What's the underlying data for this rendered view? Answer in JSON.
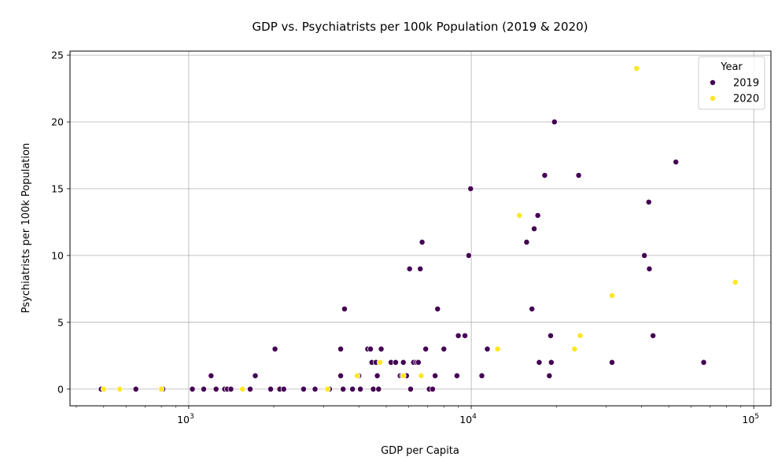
{
  "chart_data": {
    "type": "scatter",
    "title": "GDP vs. Psychiatrists per 100k Population (2019 & 2020)",
    "xlabel": "GDP per Capita",
    "ylabel": "Psychiatrists per 100k Population",
    "x_scale": "log",
    "xlim": [
      380,
      115000
    ],
    "ylim": [
      -1.25,
      25.3
    ],
    "x_ticks": [
      {
        "value": 1000,
        "base": "10",
        "exp": "3"
      },
      {
        "value": 10000,
        "base": "10",
        "exp": "4"
      },
      {
        "value": 100000,
        "base": "10",
        "exp": "5"
      }
    ],
    "y_ticks": [
      0,
      5,
      10,
      15,
      20,
      25
    ],
    "grid": true,
    "legend": {
      "title": "Year",
      "position": "top-right"
    },
    "series": [
      {
        "name": "2019",
        "color": "#440154",
        "points": [
          [
            490,
            0
          ],
          [
            650,
            0
          ],
          [
            810,
            0
          ],
          [
            1030,
            0
          ],
          [
            1130,
            0
          ],
          [
            1200,
            1
          ],
          [
            1250,
            0
          ],
          [
            1340,
            0
          ],
          [
            1370,
            0
          ],
          [
            1410,
            0
          ],
          [
            1650,
            0
          ],
          [
            1720,
            1
          ],
          [
            1950,
            0
          ],
          [
            2020,
            3
          ],
          [
            2100,
            0
          ],
          [
            2170,
            0
          ],
          [
            2550,
            0
          ],
          [
            2800,
            0
          ],
          [
            3150,
            0
          ],
          [
            3450,
            1
          ],
          [
            3450,
            3
          ],
          [
            3520,
            0
          ],
          [
            3560,
            6
          ],
          [
            3800,
            0
          ],
          [
            4000,
            1
          ],
          [
            4050,
            0
          ],
          [
            4300,
            3
          ],
          [
            4400,
            3
          ],
          [
            4450,
            2
          ],
          [
            4500,
            0
          ],
          [
            4600,
            2
          ],
          [
            4650,
            1
          ],
          [
            4700,
            0
          ],
          [
            4800,
            3
          ],
          [
            5200,
            2
          ],
          [
            5400,
            2
          ],
          [
            5600,
            1
          ],
          [
            5700,
            1
          ],
          [
            5750,
            2
          ],
          [
            5900,
            1
          ],
          [
            6050,
            9
          ],
          [
            6100,
            0
          ],
          [
            6250,
            2
          ],
          [
            6400,
            2
          ],
          [
            6500,
            2
          ],
          [
            6600,
            9
          ],
          [
            6700,
            11
          ],
          [
            6900,
            3
          ],
          [
            7100,
            0
          ],
          [
            7300,
            0
          ],
          [
            7450,
            1
          ],
          [
            7600,
            6
          ],
          [
            8000,
            3
          ],
          [
            8900,
            1
          ],
          [
            9000,
            4
          ],
          [
            9500,
            4
          ],
          [
            9800,
            10
          ],
          [
            9950,
            15
          ],
          [
            10900,
            1
          ],
          [
            11400,
            3
          ],
          [
            15700,
            11
          ],
          [
            16400,
            6
          ],
          [
            16700,
            12
          ],
          [
            17200,
            13
          ],
          [
            17400,
            2
          ],
          [
            18200,
            16
          ],
          [
            18900,
            1
          ],
          [
            19100,
            4
          ],
          [
            19200,
            2
          ],
          [
            19700,
            20
          ],
          [
            24000,
            16
          ],
          [
            31500,
            2
          ],
          [
            41000,
            10
          ],
          [
            42500,
            14
          ],
          [
            42700,
            9
          ],
          [
            44000,
            4
          ],
          [
            53000,
            17
          ],
          [
            66500,
            2
          ]
        ]
      },
      {
        "name": "2020",
        "color": "#fde725",
        "points": [
          [
            500,
            0
          ],
          [
            570,
            0
          ],
          [
            800,
            0
          ],
          [
            1550,
            0
          ],
          [
            3100,
            0
          ],
          [
            3950,
            1
          ],
          [
            4750,
            2
          ],
          [
            5750,
            1
          ],
          [
            6650,
            1
          ],
          [
            12400,
            3
          ],
          [
            14800,
            13
          ],
          [
            23200,
            3
          ],
          [
            24300,
            4
          ],
          [
            31500,
            7
          ],
          [
            38500,
            24
          ],
          [
            86000,
            8
          ]
        ]
      }
    ]
  }
}
